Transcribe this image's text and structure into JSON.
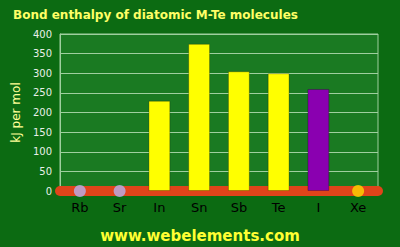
{
  "chart_data": {
    "type": "bar",
    "title": "Bond enthalpy of diatomic M-Te molecules",
    "y_label": "kJ per mol",
    "annotations": [
      "www.webelements.com"
    ],
    "categories": [
      "Rb",
      "Sr",
      "In",
      "Sn",
      "Sb",
      "Te",
      "I",
      "Xe"
    ],
    "values": [
      null,
      null,
      230,
      375,
      305,
      300,
      260,
      null
    ],
    "colors": [
      "#b8b0ee",
      "#b8b0ee",
      "#ffff00",
      "#ffff00",
      "#ffff00",
      "#ffff00",
      "#8a00b0",
      "#ffd700"
    ],
    "ylim": [
      0,
      400
    ],
    "yticks": [
      0,
      50,
      100,
      150,
      200,
      250,
      300,
      350,
      400
    ],
    "grid": true
  }
}
